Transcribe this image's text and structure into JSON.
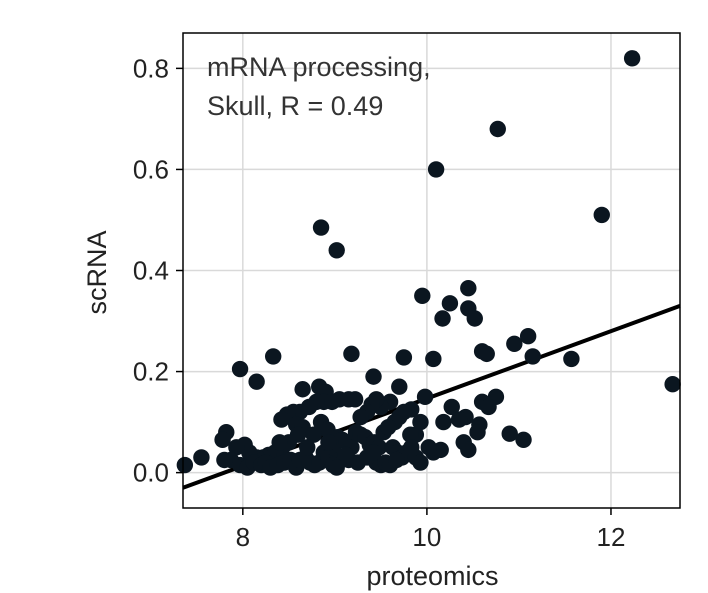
{
  "chart_data": {
    "type": "scatter",
    "title": "",
    "annotation_lines": [
      "mRNA processing,",
      "Skull, R = 0.49"
    ],
    "xlabel": "proteomics",
    "ylabel": "scRNA",
    "xlim": [
      7.35,
      12.75
    ],
    "ylim": [
      -0.07,
      0.87
    ],
    "xticks": [
      8,
      10,
      12
    ],
    "xtick_labels": [
      "8",
      "10",
      "12"
    ],
    "yticks": [
      0.0,
      0.2,
      0.4,
      0.6,
      0.8
    ],
    "ytick_labels": [
      "0.0",
      "0.2",
      "0.4",
      "0.6",
      "0.8"
    ],
    "grid": true,
    "colors": {
      "points": "#0b1620",
      "line": "#000000",
      "grid": "#d9d9d9",
      "frame": "#000000"
    },
    "regression_line": {
      "x": [
        7.35,
        12.75
      ],
      "y": [
        -0.03,
        0.33
      ]
    },
    "points": [
      [
        12.23,
        0.82
      ],
      [
        10.77,
        0.68
      ],
      [
        10.1,
        0.6
      ],
      [
        11.9,
        0.51
      ],
      [
        8.85,
        0.485
      ],
      [
        9.02,
        0.44
      ],
      [
        12.67,
        0.175
      ],
      [
        9.95,
        0.35
      ],
      [
        10.45,
        0.365
      ],
      [
        10.25,
        0.335
      ],
      [
        10.45,
        0.325
      ],
      [
        10.17,
        0.305
      ],
      [
        10.52,
        0.305
      ],
      [
        11.1,
        0.27
      ],
      [
        10.95,
        0.255
      ],
      [
        10.6,
        0.24
      ],
      [
        10.65,
        0.235
      ],
      [
        11.15,
        0.23
      ],
      [
        11.57,
        0.225
      ],
      [
        10.07,
        0.225
      ],
      [
        9.18,
        0.235
      ],
      [
        8.33,
        0.23
      ],
      [
        9.75,
        0.228
      ],
      [
        7.97,
        0.205
      ],
      [
        8.15,
        0.18
      ],
      [
        9.42,
        0.19
      ],
      [
        8.65,
        0.165
      ],
      [
        8.83,
        0.17
      ],
      [
        8.9,
        0.16
      ],
      [
        9.7,
        0.17
      ],
      [
        9.98,
        0.15
      ],
      [
        10.75,
        0.15
      ],
      [
        10.6,
        0.14
      ],
      [
        10.67,
        0.13
      ],
      [
        10.27,
        0.13
      ],
      [
        10.42,
        0.11
      ],
      [
        10.35,
        0.105
      ],
      [
        10.18,
        0.1
      ],
      [
        10.57,
        0.095
      ],
      [
        10.55,
        0.08
      ],
      [
        10.9,
        0.077
      ],
      [
        11.05,
        0.065
      ],
      [
        10.4,
        0.06
      ],
      [
        10.45,
        0.045
      ],
      [
        10.15,
        0.045
      ],
      [
        10.07,
        0.04
      ],
      [
        10.02,
        0.05
      ],
      [
        9.88,
        0.075
      ],
      [
        9.82,
        0.075
      ],
      [
        9.93,
        0.1
      ],
      [
        9.83,
        0.125
      ],
      [
        9.75,
        0.12
      ],
      [
        9.7,
        0.11
      ],
      [
        9.65,
        0.1
      ],
      [
        9.6,
        0.14
      ],
      [
        9.5,
        0.13
      ],
      [
        9.45,
        0.145
      ],
      [
        9.4,
        0.135
      ],
      [
        9.35,
        0.12
      ],
      [
        9.28,
        0.11
      ],
      [
        9.22,
        0.145
      ],
      [
        9.15,
        0.145
      ],
      [
        9.05,
        0.145
      ],
      [
        8.97,
        0.14
      ],
      [
        8.88,
        0.14
      ],
      [
        8.8,
        0.14
      ],
      [
        8.72,
        0.13
      ],
      [
        8.62,
        0.12
      ],
      [
        8.55,
        0.12
      ],
      [
        8.48,
        0.115
      ],
      [
        8.42,
        0.105
      ],
      [
        8.58,
        0.095
      ],
      [
        8.65,
        0.09
      ],
      [
        8.85,
        0.1
      ],
      [
        8.92,
        0.085
      ],
      [
        8.77,
        0.075
      ],
      [
        8.6,
        0.075
      ],
      [
        8.5,
        0.06
      ],
      [
        8.43,
        0.05
      ],
      [
        8.35,
        0.04
      ],
      [
        8.28,
        0.035
      ],
      [
        8.22,
        0.03
      ],
      [
        8.15,
        0.03
      ],
      [
        8.07,
        0.04
      ],
      [
        8.02,
        0.055
      ],
      [
        7.93,
        0.05
      ],
      [
        7.87,
        0.025
      ],
      [
        7.82,
        0.08
      ],
      [
        7.78,
        0.065
      ],
      [
        7.8,
        0.025
      ],
      [
        7.55,
        0.03
      ],
      [
        7.37,
        0.015
      ],
      [
        7.97,
        0.015
      ],
      [
        8.05,
        0.01
      ],
      [
        8.12,
        0.02
      ],
      [
        8.2,
        0.015
      ],
      [
        8.25,
        0.02
      ],
      [
        8.3,
        0.01
      ],
      [
        8.38,
        0.015
      ],
      [
        8.45,
        0.02
      ],
      [
        8.52,
        0.025
      ],
      [
        8.58,
        0.01
      ],
      [
        8.62,
        0.025
      ],
      [
        8.68,
        0.03
      ],
      [
        8.73,
        0.02
      ],
      [
        8.78,
        0.015
      ],
      [
        8.83,
        0.02
      ],
      [
        8.88,
        0.04
      ],
      [
        8.93,
        0.03
      ],
      [
        8.98,
        0.05
      ],
      [
        9.03,
        0.07
      ],
      [
        9.08,
        0.065
      ],
      [
        9.13,
        0.06
      ],
      [
        9.18,
        0.05
      ],
      [
        9.23,
        0.08
      ],
      [
        9.28,
        0.075
      ],
      [
        9.33,
        0.07
      ],
      [
        9.38,
        0.055
      ],
      [
        9.43,
        0.06
      ],
      [
        9.48,
        0.05
      ],
      [
        9.53,
        0.08
      ],
      [
        9.58,
        0.09
      ],
      [
        9.63,
        0.05
      ],
      [
        9.68,
        0.04
      ],
      [
        9.73,
        0.03
      ],
      [
        9.78,
        0.04
      ],
      [
        9.83,
        0.05
      ],
      [
        9.88,
        0.03
      ],
      [
        9.93,
        0.02
      ],
      [
        9.45,
        0.02
      ],
      [
        9.5,
        0.015
      ],
      [
        9.55,
        0.02
      ],
      [
        9.6,
        0.015
      ],
      [
        9.67,
        0.025
      ],
      [
        9.25,
        0.02
      ],
      [
        9.15,
        0.025
      ],
      [
        9.05,
        0.025
      ],
      [
        8.98,
        0.015
      ],
      [
        9.35,
        0.03
      ],
      [
        9.42,
        0.04
      ],
      [
        9.12,
        0.035
      ],
      [
        9.02,
        0.01
      ],
      [
        8.93,
        0.06
      ],
      [
        8.7,
        0.05
      ],
      [
        8.4,
        0.06
      ]
    ]
  }
}
